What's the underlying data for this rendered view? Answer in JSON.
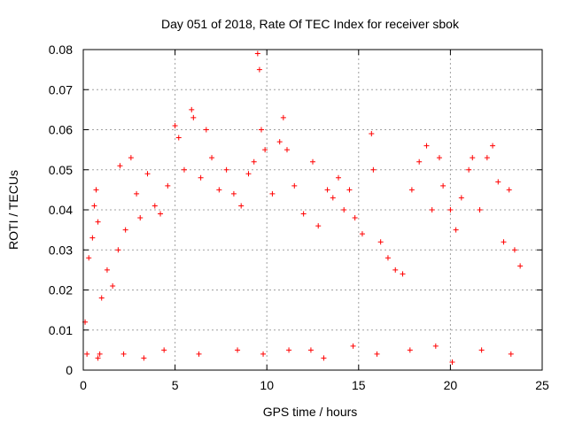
{
  "chart_data": {
    "type": "scatter",
    "title": "Day 051 of 2018, Rate Of TEC Index for receiver sbok",
    "xlabel": "GPS time / hours",
    "ylabel": "ROTI / TECUs",
    "xlim": [
      0,
      25
    ],
    "ylim": [
      0,
      0.08
    ],
    "x_ticks": [
      0,
      5,
      10,
      15,
      20,
      25
    ],
    "x_tick_labels": [
      "0",
      "5",
      "10",
      "15",
      "20",
      "25"
    ],
    "y_ticks": [
      0,
      0.01,
      0.02,
      0.03,
      0.04,
      0.05,
      0.06,
      0.07,
      0.08
    ],
    "y_tick_labels": [
      "0",
      "0.01",
      "0.02",
      "0.03",
      "0.04",
      "0.05",
      "0.06",
      "0.07",
      "0.08"
    ],
    "grid": true,
    "marker": "+",
    "color": "#ff0000",
    "series": [
      {
        "points": [
          [
            0.1,
            0.012
          ],
          [
            0.3,
            0.028
          ],
          [
            0.5,
            0.033
          ],
          [
            0.6,
            0.041
          ],
          [
            0.7,
            0.045
          ],
          [
            0.8,
            0.037
          ],
          [
            0.9,
            0.004
          ],
          [
            1.0,
            0.018
          ],
          [
            1.3,
            0.025
          ],
          [
            1.6,
            0.021
          ],
          [
            1.9,
            0.03
          ],
          [
            2.0,
            0.051
          ],
          [
            2.3,
            0.035
          ],
          [
            2.6,
            0.053
          ],
          [
            2.9,
            0.044
          ],
          [
            3.1,
            0.038
          ],
          [
            3.5,
            0.049
          ],
          [
            3.9,
            0.041
          ],
          [
            4.2,
            0.039
          ],
          [
            4.6,
            0.046
          ],
          [
            5.0,
            0.061
          ],
          [
            5.2,
            0.058
          ],
          [
            5.5,
            0.05
          ],
          [
            5.9,
            0.065
          ],
          [
            6.0,
            0.063
          ],
          [
            6.4,
            0.048
          ],
          [
            6.7,
            0.06
          ],
          [
            7.0,
            0.053
          ],
          [
            7.4,
            0.045
          ],
          [
            7.8,
            0.05
          ],
          [
            8.2,
            0.044
          ],
          [
            8.6,
            0.041
          ],
          [
            9.0,
            0.049
          ],
          [
            9.3,
            0.052
          ],
          [
            9.5,
            0.079
          ],
          [
            9.6,
            0.075
          ],
          [
            9.7,
            0.06
          ],
          [
            9.9,
            0.055
          ],
          [
            10.3,
            0.044
          ],
          [
            10.7,
            0.057
          ],
          [
            10.9,
            0.063
          ],
          [
            11.1,
            0.055
          ],
          [
            11.5,
            0.046
          ],
          [
            12.0,
            0.039
          ],
          [
            12.5,
            0.052
          ],
          [
            12.8,
            0.036
          ],
          [
            13.3,
            0.045
          ],
          [
            13.6,
            0.043
          ],
          [
            13.9,
            0.048
          ],
          [
            14.2,
            0.04
          ],
          [
            14.5,
            0.045
          ],
          [
            14.8,
            0.038
          ],
          [
            15.2,
            0.034
          ],
          [
            15.7,
            0.059
          ],
          [
            15.8,
            0.05
          ],
          [
            16.2,
            0.032
          ],
          [
            16.6,
            0.028
          ],
          [
            17.0,
            0.025
          ],
          [
            17.4,
            0.024
          ],
          [
            17.9,
            0.045
          ],
          [
            18.3,
            0.052
          ],
          [
            18.7,
            0.056
          ],
          [
            19.0,
            0.04
          ],
          [
            19.4,
            0.053
          ],
          [
            19.6,
            0.046
          ],
          [
            20.0,
            0.04
          ],
          [
            20.3,
            0.035
          ],
          [
            20.6,
            0.043
          ],
          [
            21.0,
            0.05
          ],
          [
            21.2,
            0.053
          ],
          [
            21.6,
            0.04
          ],
          [
            22.0,
            0.053
          ],
          [
            22.3,
            0.056
          ],
          [
            22.6,
            0.047
          ],
          [
            22.9,
            0.032
          ],
          [
            23.2,
            0.045
          ],
          [
            23.5,
            0.03
          ],
          [
            23.8,
            0.026
          ],
          [
            0.2,
            0.004
          ],
          [
            0.8,
            0.003
          ],
          [
            2.2,
            0.004
          ],
          [
            3.3,
            0.003
          ],
          [
            4.4,
            0.005
          ],
          [
            6.3,
            0.004
          ],
          [
            8.4,
            0.005
          ],
          [
            9.8,
            0.004
          ],
          [
            11.2,
            0.005
          ],
          [
            12.4,
            0.005
          ],
          [
            13.1,
            0.003
          ],
          [
            14.7,
            0.006
          ],
          [
            16.0,
            0.004
          ],
          [
            17.8,
            0.005
          ],
          [
            19.2,
            0.006
          ],
          [
            20.1,
            0.002
          ],
          [
            21.7,
            0.005
          ],
          [
            23.3,
            0.004
          ]
        ]
      }
    ]
  }
}
